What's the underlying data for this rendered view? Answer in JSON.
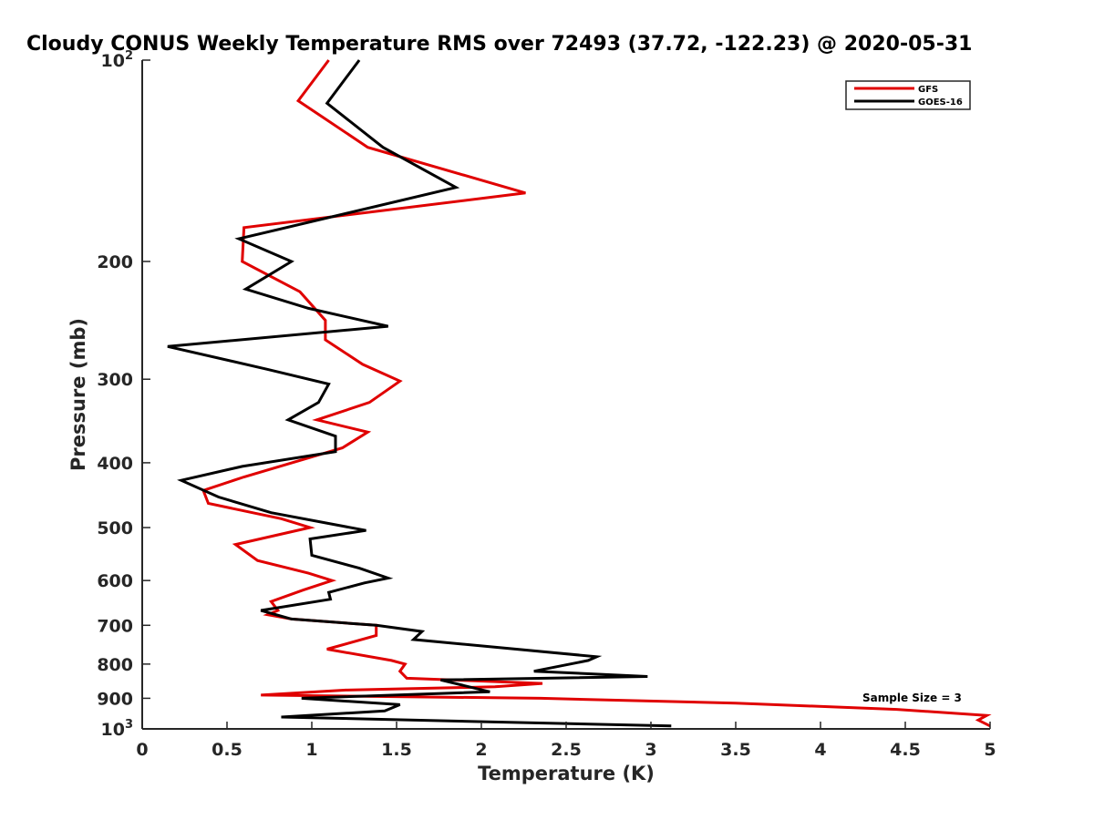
{
  "chart_data": {
    "type": "line",
    "title": "Cloudy CONUS Weekly Temperature RMS over 72493 (37.72, -122.23) @ 2020-05-31",
    "xlabel": "Temperature (K)",
    "ylabel": "Pressure (mb)",
    "xlim": [
      0,
      5
    ],
    "ylim": [
      100,
      1000
    ],
    "y_scale": "log",
    "y_reversed": true,
    "grid": false,
    "legend_position": "top-right",
    "x_ticks": [
      0,
      0.5,
      1,
      1.5,
      2,
      2.5,
      3,
      3.5,
      4,
      4.5,
      5
    ],
    "x_tick_labels": [
      "0",
      "0.5",
      "1",
      "1.5",
      "2",
      "2.5",
      "3",
      "3.5",
      "4",
      "4.5",
      "5"
    ],
    "y_ticks": [
      {
        "value": 100,
        "base": "10",
        "exp": "2"
      },
      {
        "value": 200,
        "label": "200"
      },
      {
        "value": 300,
        "label": "300"
      },
      {
        "value": 400,
        "label": "400"
      },
      {
        "value": 500,
        "label": "500"
      },
      {
        "value": 600,
        "label": "600"
      },
      {
        "value": 700,
        "label": "700"
      },
      {
        "value": 800,
        "label": "800"
      },
      {
        "value": 900,
        "label": "900"
      },
      {
        "value": 1000,
        "base": "10",
        "exp": "3"
      }
    ],
    "annotation": "Sample Size = 3",
    "series": [
      {
        "name": "GFS",
        "color": "#e00000",
        "points": [
          [
            1.1,
            100
          ],
          [
            0.92,
            115
          ],
          [
            1.33,
            135
          ],
          [
            2.26,
            158
          ],
          [
            0.6,
            178
          ],
          [
            0.59,
            200
          ],
          [
            0.93,
            222
          ],
          [
            1.08,
            245
          ],
          [
            1.08,
            262
          ],
          [
            1.3,
            285
          ],
          [
            1.52,
            302
          ],
          [
            1.34,
            325
          ],
          [
            1.03,
            345
          ],
          [
            1.33,
            360
          ],
          [
            1.18,
            380
          ],
          [
            0.6,
            420
          ],
          [
            0.36,
            440
          ],
          [
            0.39,
            460
          ],
          [
            0.82,
            485
          ],
          [
            0.99,
            500
          ],
          [
            0.55,
            530
          ],
          [
            0.68,
            560
          ],
          [
            0.98,
            585
          ],
          [
            1.12,
            600
          ],
          [
            0.95,
            620
          ],
          [
            0.76,
            645
          ],
          [
            0.8,
            665
          ],
          [
            0.74,
            675
          ],
          [
            0.88,
            685
          ],
          [
            1.38,
            700
          ],
          [
            1.38,
            725
          ],
          [
            1.09,
            760
          ],
          [
            1.47,
            790
          ],
          [
            1.55,
            800
          ],
          [
            1.52,
            820
          ],
          [
            1.56,
            840
          ],
          [
            2.36,
            855
          ],
          [
            2.08,
            865
          ],
          [
            1.2,
            875
          ],
          [
            0.7,
            890
          ],
          [
            2.35,
            900
          ],
          [
            3.5,
            915
          ],
          [
            4.45,
            935
          ],
          [
            4.98,
            955
          ],
          [
            4.93,
            970
          ],
          [
            5.0,
            990
          ]
        ]
      },
      {
        "name": "GOES-16",
        "color": "#000000",
        "points": [
          [
            1.28,
            100
          ],
          [
            1.09,
            116
          ],
          [
            1.42,
            135
          ],
          [
            1.85,
            155
          ],
          [
            0.57,
            185
          ],
          [
            0.88,
            200
          ],
          [
            0.61,
            220
          ],
          [
            0.98,
            235
          ],
          [
            1.45,
            250
          ],
          [
            0.15,
            268
          ],
          [
            0.74,
            290
          ],
          [
            1.1,
            305
          ],
          [
            1.04,
            325
          ],
          [
            0.86,
            345
          ],
          [
            1.14,
            365
          ],
          [
            1.14,
            385
          ],
          [
            0.59,
            405
          ],
          [
            0.23,
            425
          ],
          [
            0.45,
            450
          ],
          [
            0.76,
            475
          ],
          [
            1.32,
            505
          ],
          [
            0.99,
            520
          ],
          [
            1.0,
            550
          ],
          [
            1.28,
            575
          ],
          [
            1.45,
            595
          ],
          [
            1.31,
            605
          ],
          [
            1.1,
            625
          ],
          [
            1.11,
            640
          ],
          [
            0.7,
            665
          ],
          [
            0.88,
            685
          ],
          [
            1.38,
            700
          ],
          [
            1.65,
            715
          ],
          [
            1.6,
            735
          ],
          [
            2.68,
            780
          ],
          [
            2.63,
            790
          ],
          [
            2.31,
            820
          ],
          [
            2.98,
            835
          ],
          [
            1.76,
            845
          ],
          [
            2.05,
            880
          ],
          [
            0.94,
            900
          ],
          [
            1.52,
            920
          ],
          [
            1.43,
            940
          ],
          [
            0.82,
            960
          ],
          [
            3.12,
            990
          ]
        ]
      }
    ]
  }
}
